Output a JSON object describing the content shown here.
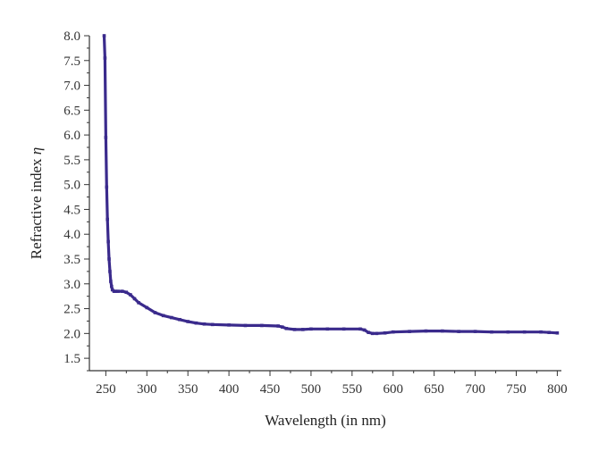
{
  "chart_data": {
    "type": "line",
    "title": "",
    "xlabel": "Wavelength (in nm)",
    "ylabel_text": "Refractive index ",
    "ylabel_symbol": "η",
    "xlim": [
      230,
      805
    ],
    "ylim": [
      1.25,
      8.0
    ],
    "x_ticks": [
      250,
      300,
      350,
      400,
      450,
      500,
      550,
      600,
      650,
      700,
      750,
      800
    ],
    "x_tick_labels": [
      "250",
      "300",
      "350",
      "400",
      "450",
      "500",
      "550",
      "600",
      "650",
      "700",
      "750",
      "800"
    ],
    "y_ticks": [
      1.5,
      2.0,
      2.5,
      3.0,
      3.5,
      4.0,
      4.5,
      5.0,
      5.5,
      6.0,
      6.5,
      7.0,
      7.5,
      8.0
    ],
    "y_tick_labels": [
      "1.5",
      "2.0",
      "2.5",
      "3.0",
      "3.5",
      "4.0",
      "4.5",
      "5.0",
      "5.5",
      "6.0",
      "6.5",
      "7.0",
      "7.5",
      "8.0"
    ],
    "grid": false,
    "legend": "none",
    "series": [
      {
        "color": "#3a2a8c",
        "marker": "square",
        "x": [
          248,
          249,
          250,
          251,
          252,
          253,
          254,
          255,
          256,
          257,
          258,
          260,
          262,
          265,
          270,
          275,
          280,
          285,
          290,
          300,
          310,
          320,
          330,
          340,
          350,
          360,
          370,
          380,
          400,
          420,
          440,
          460,
          465,
          470,
          480,
          490,
          500,
          520,
          540,
          560,
          565,
          570,
          575,
          580,
          590,
          600,
          620,
          640,
          660,
          680,
          700,
          720,
          740,
          760,
          780,
          790,
          800
        ],
        "y": [
          8.0,
          7.55,
          5.95,
          4.95,
          4.3,
          3.85,
          3.5,
          3.25,
          3.05,
          2.95,
          2.88,
          2.85,
          2.85,
          2.85,
          2.85,
          2.83,
          2.78,
          2.7,
          2.62,
          2.52,
          2.42,
          2.36,
          2.32,
          2.28,
          2.24,
          2.21,
          2.19,
          2.18,
          2.17,
          2.16,
          2.16,
          2.15,
          2.13,
          2.1,
          2.08,
          2.08,
          2.09,
          2.09,
          2.09,
          2.09,
          2.07,
          2.02,
          2.0,
          2.0,
          2.01,
          2.03,
          2.04,
          2.05,
          2.05,
          2.04,
          2.04,
          2.03,
          2.03,
          2.03,
          2.03,
          2.02,
          2.01
        ]
      }
    ]
  }
}
